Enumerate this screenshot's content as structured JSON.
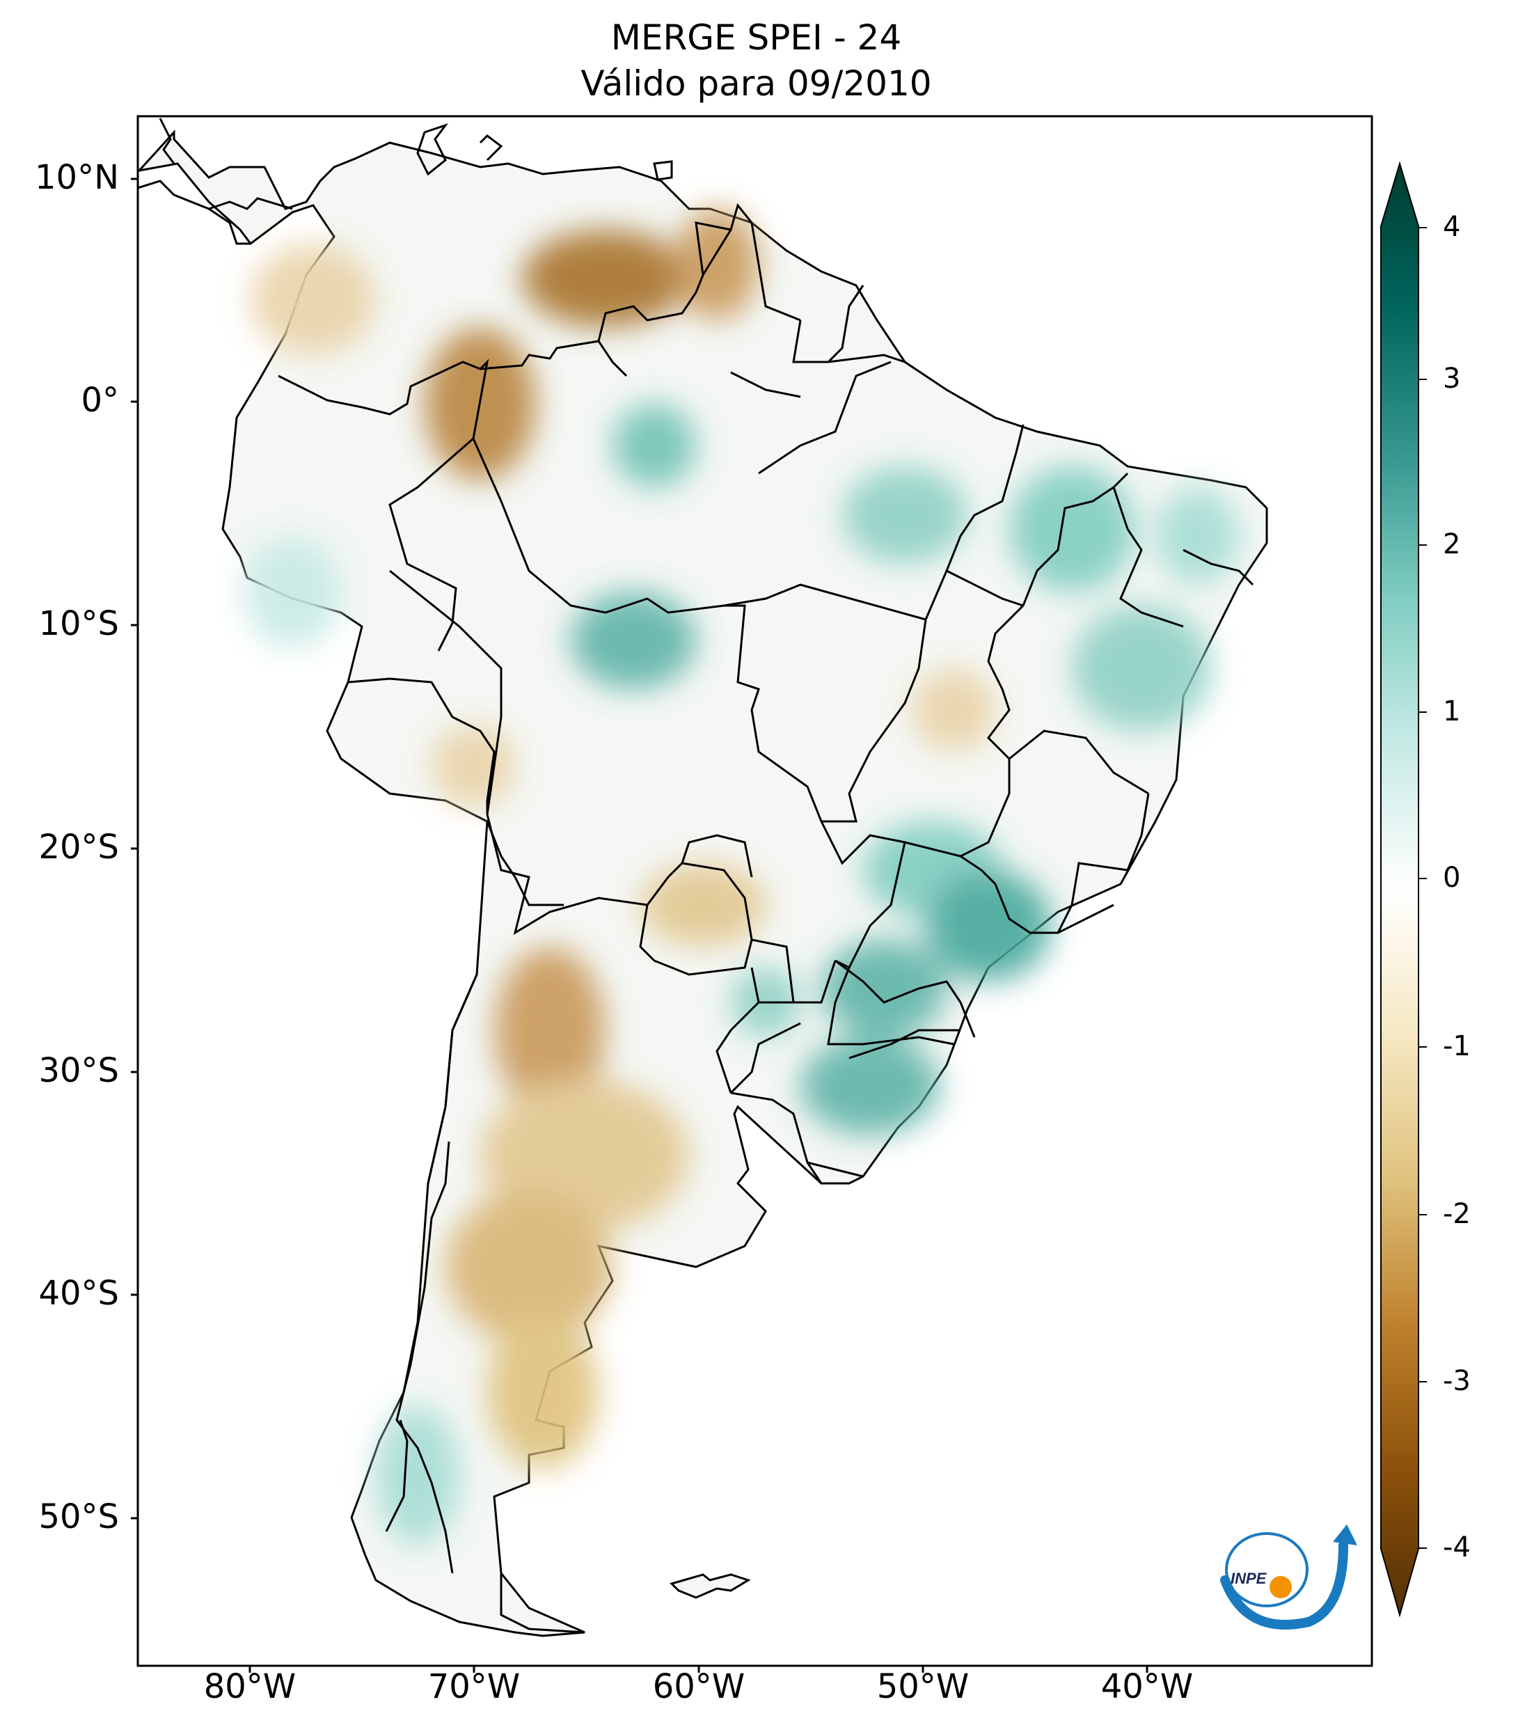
{
  "title": {
    "line1": "MERGE   SPEI - 24",
    "line2": "Válido para 09/2010"
  },
  "map": {
    "type": "choropleth-raster",
    "region": "South America",
    "lat_labels": [
      "10°N",
      "0°",
      "10°S",
      "20°S",
      "30°S",
      "40°S",
      "50°S"
    ],
    "lon_labels": [
      "80°W",
      "70°W",
      "60°W",
      "50°W",
      "40°W"
    ],
    "extent": {
      "lon": [
        -85,
        -30
      ],
      "lat": [
        -56,
        12.5
      ]
    }
  },
  "colorbar": {
    "ticks": [
      "4",
      "3",
      "2",
      "1",
      "0",
      "-1",
      "-2",
      "-3",
      "-4"
    ],
    "range": [
      -4,
      4
    ],
    "extend": "both",
    "colors": [
      "#543005",
      "#8c510a",
      "#bf812d",
      "#dfc27d",
      "#f6e8c3",
      "#ffffff",
      "#c7eae5",
      "#80cdc1",
      "#35978f",
      "#01665e",
      "#003c30"
    ]
  },
  "logo": {
    "text": "INPE",
    "colors": {
      "blue": "#1a7ac0",
      "orange": "#f39200"
    }
  }
}
